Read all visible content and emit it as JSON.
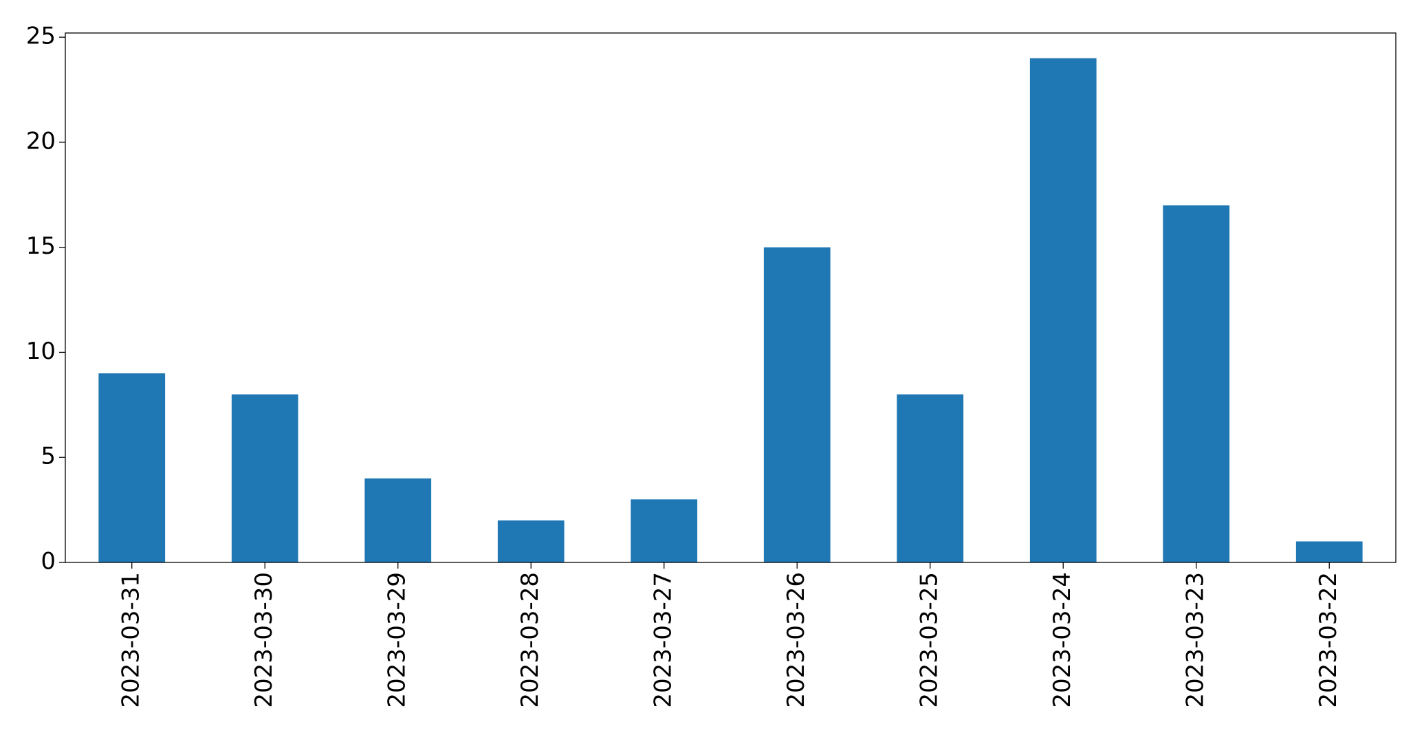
{
  "chart_data": {
    "type": "bar",
    "categories": [
      "2023-03-31",
      "2023-03-30",
      "2023-03-29",
      "2023-03-28",
      "2023-03-27",
      "2023-03-26",
      "2023-03-25",
      "2023-03-24",
      "2023-03-23",
      "2023-03-22"
    ],
    "values": [
      9,
      8,
      4,
      2,
      3,
      15,
      8,
      24,
      17,
      1
    ],
    "color": "#1f77b4",
    "ylim": [
      0,
      25.2
    ],
    "yticks": [
      0,
      5,
      10,
      15,
      20,
      25
    ],
    "grid": false
  }
}
